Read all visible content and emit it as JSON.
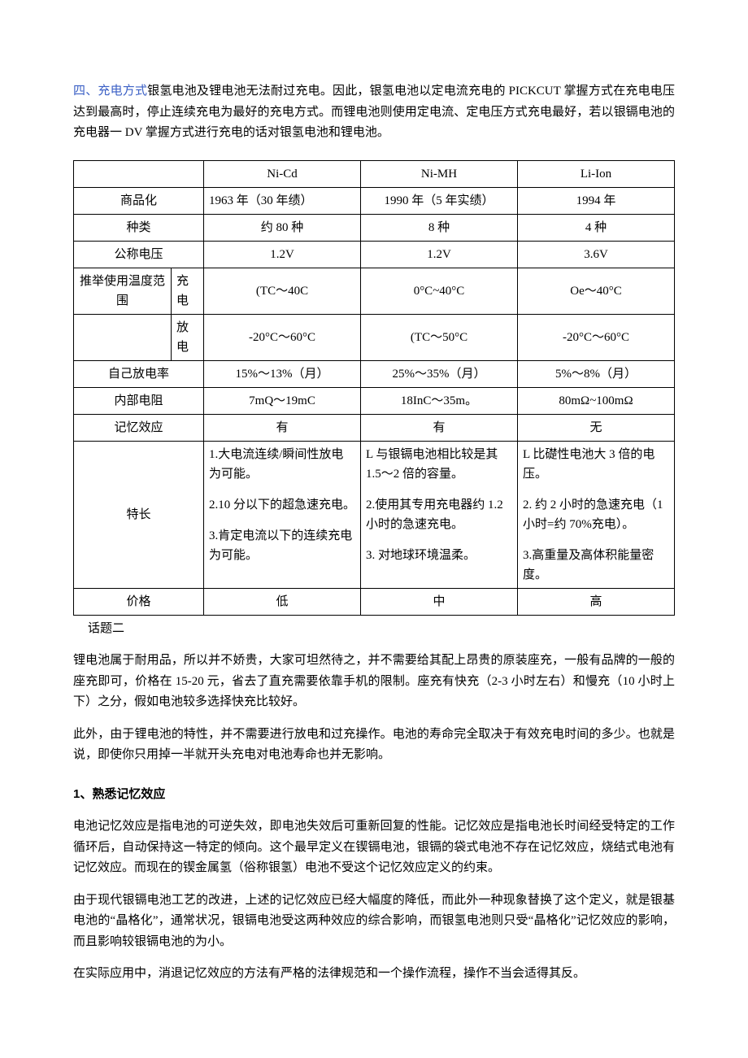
{
  "intro": {
    "label_prefix": "四、充电方式",
    "text": "银氢电池及锂电池无法耐过充电。因此，银氢电池以定电流充电的 PICKCUT 掌握方式在充电电压达到最高时，停止连续充电为最好的充电方式。而锂电池则使用定电流、定电压方式充电最好，若以银镉电池的充电器一 DV 掌握方式进行充电的话对银氢电池和锂电池。"
  },
  "table": {
    "headers": {
      "c1": "Ni-Cd",
      "c2": "Ni-MH",
      "c3": "Li-Ion"
    },
    "rows": {
      "commercial": {
        "label": "商品化",
        "c1": "1963 年（30 年绩）",
        "c2": "1990 年（5 年实绩）",
        "c3": "1994 年"
      },
      "types": {
        "label": "种类",
        "c1": "约 80 种",
        "c2": "8 种",
        "c3": "4 种"
      },
      "voltage": {
        "label": "公称电压",
        "c1": "1.2V",
        "c2": "1.2V",
        "c3": "3.6V"
      },
      "temp": {
        "label": "推举使用温度范围",
        "charge": {
          "sub": "充电",
          "c1": "(TC～40C",
          "c2": "0°C~40°C",
          "c3": "Oe～40°C"
        },
        "discharge": {
          "sub": "放电",
          "c1": "-20°C～60°C",
          "c2": "(TC～50°C",
          "c3": "-20°C～60°C"
        }
      },
      "selfdis": {
        "label": "自己放电率",
        "c1": "15%～13%（月）",
        "c2": "25%～35%（月）",
        "c3": "5%～8%（月）"
      },
      "ires": {
        "label": "内部电阻",
        "c1": "7mQ～19mC",
        "c2": "18InC～35m。",
        "c3": "80mΩ~100mΩ"
      },
      "memory": {
        "label": "记忆效应",
        "c1": "有",
        "c2": "有",
        "c3": "无"
      },
      "features": {
        "label": "特长",
        "c1": {
          "f1": "1.大电流连续/瞬间性放电为可能。",
          "f2": "2.10 分以下的超急速充电。",
          "f3": "3.肯定电流以下的连续充电为可能。"
        },
        "c2": {
          "f1": "L 与银镉电池相比较是其 1.5～2 倍的容量。",
          "f2": "2.使用其专用充电器约 1.2 小时的急速充电。",
          "f3": "3. 对地球环境温柔。"
        },
        "c3": {
          "f1": "L 比礎性电池大 3 倍的电压。",
          "f2": "2. 约 2 小时的急速充电（1 小时=约 70%充电）。",
          "f3": "3.高重量及高体积能量密度。"
        }
      },
      "price": {
        "label": "价格",
        "c1": "低",
        "c2": "中",
        "c3": "高"
      }
    }
  },
  "caption": "话题二",
  "para1": "锂电池属于耐用品，所以并不娇贵，大家可坦然待之，并不需要给其配上昂贵的原装座充，一般有品牌的一般的座充即可，价格在 15-20 元，省去了直充需要依靠手机的限制。座充有快充（2-3 小时左右）和慢充（10 小时上下）之分，假如电池较多选择快充比较好。",
  "para2": "此外，由于锂电池的特性，并不需要进行放电和过充操作。电池的寿命完全取决于有效充电时间的多少。也就是说，即使你只用掉一半就开头充电对电池寿命也并无影响。",
  "heading1": {
    "num": "1",
    "text": "、熟悉记忆效应"
  },
  "para3": "电池记忆效应是指电池的可逆失效，即电池失效后可重新回复的性能。记忆效应是指电池长时间经受特定的工作循环后，自动保持这一特定的倾向。这个最早定义在锲镉电池，银镉的袋式电池不存在记忆效应，烧结式电池有记忆效应。而现在的锲金属氢（俗称银氢）电池不受这个记忆效应定义的约束。",
  "para4": "由于现代银镉电池工艺的改进，上述的记忆效应已经大幅度的降低，而此外一种现象替换了这个定义，就是银基电池的“晶格化”，通常状况，银镉电池受这两种效应的综合影响，而银氢电池则只受“晶格化”记忆效应的影响，而且影响较银镉电池的为小。",
  "para5": "在实际应用中，消退记忆效应的方法有严格的法律规范和一个操作流程，操作不当会适得其反。"
}
